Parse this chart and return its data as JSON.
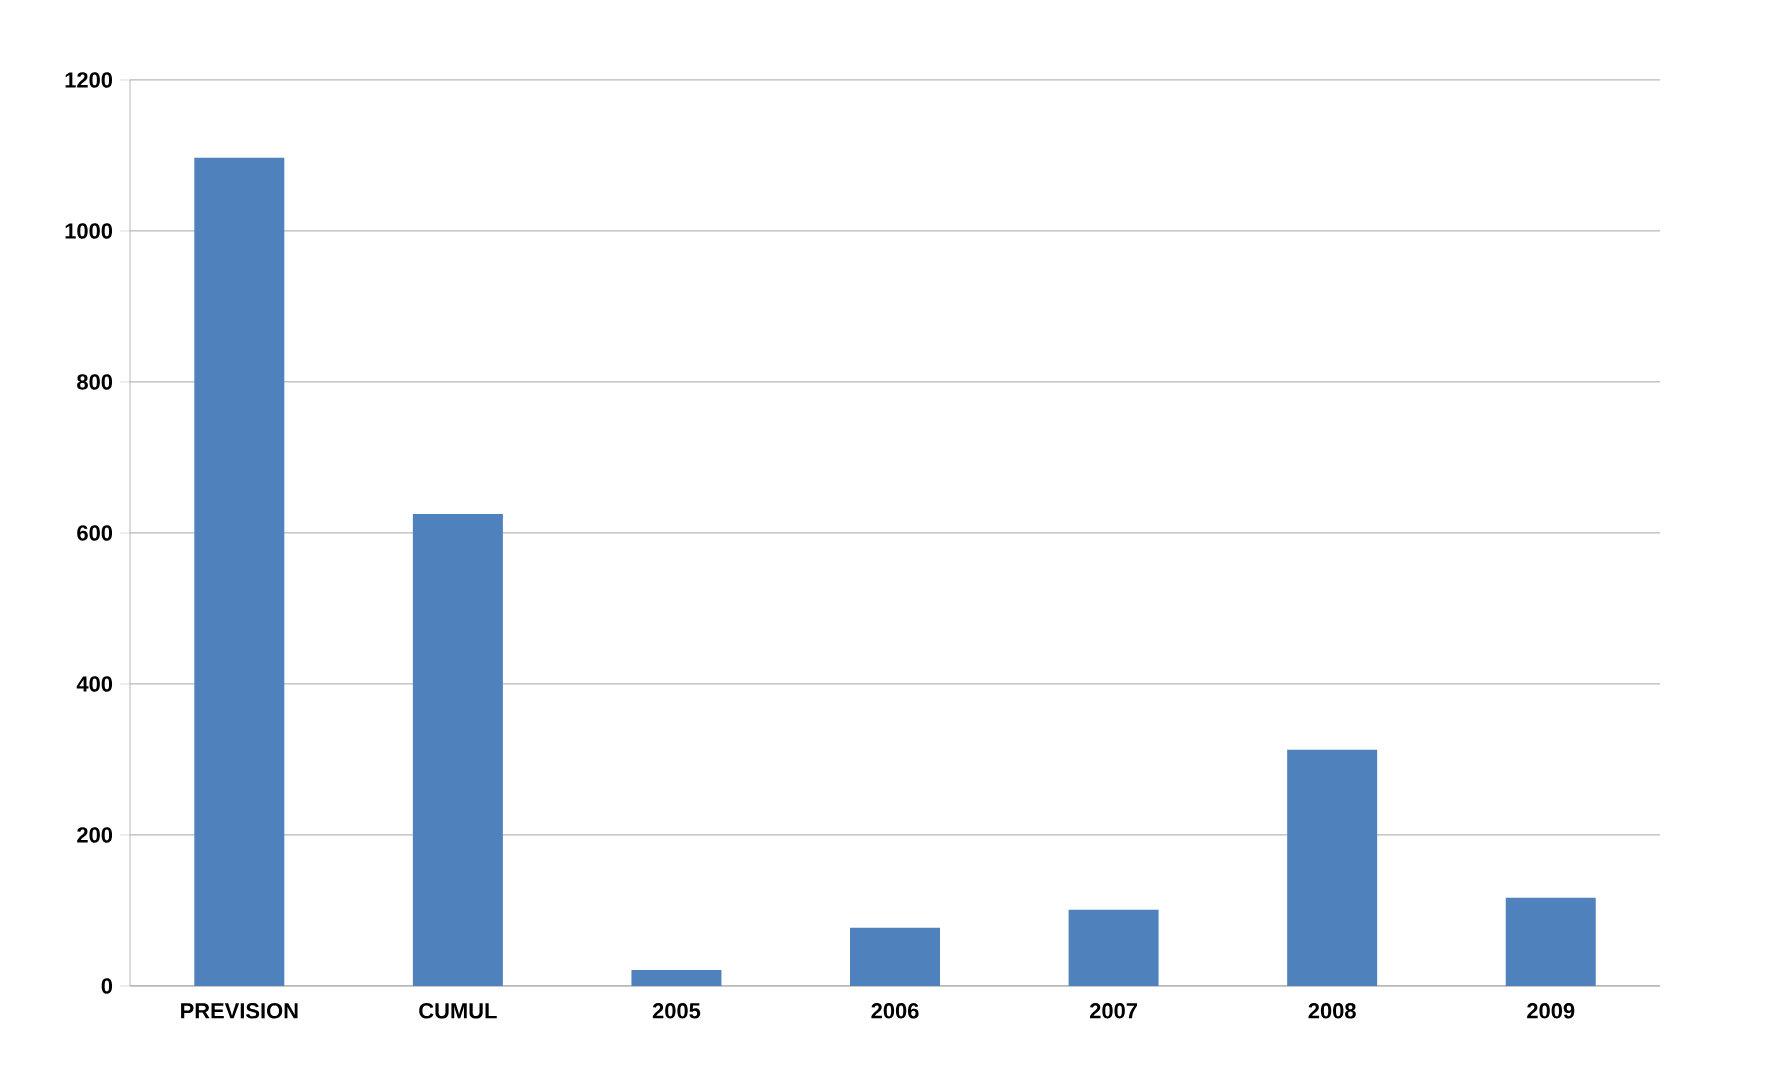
{
  "chart_data": {
    "type": "bar",
    "categories": [
      "PREVISION",
      "CUMUL",
      "2005",
      "2006",
      "2007",
      "2008",
      "2009"
    ],
    "values": [
      1097,
      625,
      21,
      77,
      101,
      313,
      117
    ],
    "color": "#4f81bd",
    "ylim": [
      0,
      1200
    ],
    "yticks": [
      0,
      200,
      400,
      600,
      800,
      1000,
      1200
    ],
    "grid": "y"
  }
}
